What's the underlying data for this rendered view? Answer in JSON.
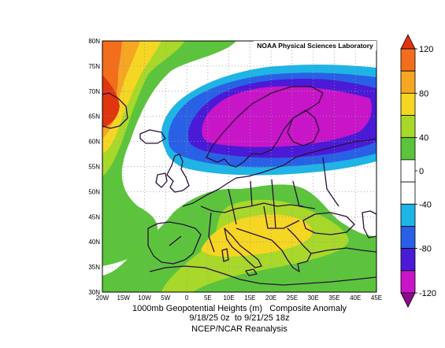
{
  "map": {
    "credit": "NOAA Physical Sciences Laboratory",
    "lat_labels": [
      "80N",
      "75N",
      "70N",
      "65N",
      "60N",
      "55N",
      "50N",
      "45N",
      "40N",
      "35N",
      "30N"
    ],
    "lon_labels": [
      "20W",
      "15W",
      "10W",
      "5W",
      "0",
      "5E",
      "10E",
      "15E",
      "20E",
      "25E",
      "30E",
      "35E",
      "40E",
      "45E"
    ],
    "lat_range": [
      30,
      80
    ],
    "lon_range": [
      -20,
      45
    ],
    "grid": "dotted"
  },
  "caption": {
    "line1": "1000mb Geopotential Heights (m)   Composite Anomaly",
    "line2": "9/18/25 0z  to 9/21/25 18z",
    "line3": "NCEP/NCAR Reanalysis"
  },
  "colorbar": {
    "labels": [
      "120",
      "80",
      "40",
      "0",
      "-40",
      "-80",
      "-120"
    ],
    "colors": {
      "above_120": "#e0350f",
      "100_120": "#f26e1c",
      "80_100": "#f5a623",
      "60_80": "#f5d623",
      "40_60": "#a8d82a",
      "20_40": "#5cc43c",
      "0_20": "#ffffff",
      "m20_0": "#ffffff",
      "m40_m20": "#1eb4e6",
      "m60_m40": "#2a60e6",
      "m80_m60": "#4a1ad6",
      "m100_m80": "#c815c8",
      "below_m100": "#8c0a8c"
    }
  }
}
